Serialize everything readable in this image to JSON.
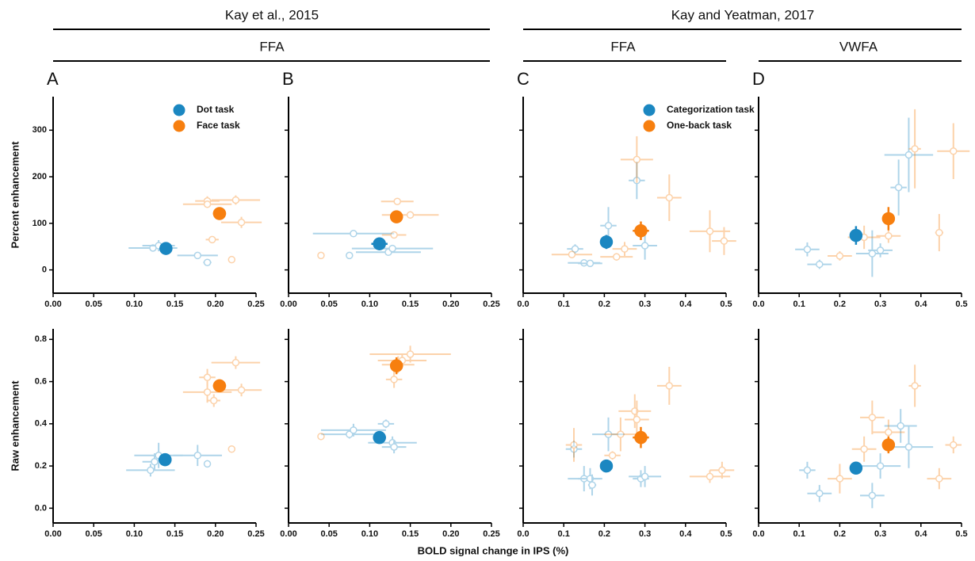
{
  "figure": {
    "groups": [
      {
        "title": "Kay et al., 2015",
        "regions": [
          "FFA"
        ]
      },
      {
        "title": "Kay and Yeatman, 2017",
        "regions": [
          "FFA",
          "VWFA"
        ]
      }
    ],
    "xlabel": "BOLD signal change in IPS (%)"
  },
  "chart_data": [
    {
      "type": "scatter",
      "panel": "A",
      "ylabel": "Percent enhancement",
      "legend": "upper right",
      "ytick_labels": true,
      "xlim": [
        0,
        0.25
      ],
      "xticks": [
        {
          "value": 0,
          "label": "0.00"
        },
        0.05,
        {
          "value": 0.1,
          "label": "0.10"
        },
        0.15,
        {
          "value": 0.2,
          "label": "0.20"
        },
        0.25
      ],
      "ylim": [
        -50,
        372
      ],
      "yticks": [
        0,
        100,
        200,
        300
      ],
      "series": [
        {
          "color": "#1b87c1",
          "filled": false,
          "x": [
            0.123,
            0.13,
            0.178,
            0.19
          ],
          "values": [
            47,
            52,
            31,
            16
          ],
          "xerr": [
            0.03,
            0.02,
            0.025,
            0.005
          ],
          "yerr": [
            5,
            12,
            4,
            3
          ]
        },
        {
          "color": "#f77f0f",
          "filled": false,
          "x": [
            0.19,
            0.19,
            0.225,
            0.232,
            0.196,
            0.22
          ],
          "values": [
            148,
            141,
            150,
            102,
            65,
            22
          ],
          "xerr": [
            0.015,
            0.03,
            0.03,
            0.025,
            0.008,
            0.004
          ],
          "yerr": [
            10,
            8,
            10,
            12,
            5,
            4
          ]
        },
        {
          "name": "Dot task",
          "color": "#1b87c1",
          "filled": true,
          "x": [
            0.139
          ],
          "values": [
            46
          ],
          "xerr": [
            0.008
          ],
          "yerr": [
            8
          ]
        },
        {
          "name": "Face task",
          "color": "#f77f0f",
          "filled": true,
          "x": [
            0.205
          ],
          "values": [
            121
          ],
          "xerr": [
            0.008
          ],
          "yerr": [
            10
          ]
        }
      ]
    },
    {
      "type": "scatter",
      "panel": "B",
      "ytick_labels": false,
      "xlim": [
        0,
        0.25
      ],
      "xticks": [
        {
          "value": 0,
          "label": "0.00"
        },
        0.05,
        {
          "value": 0.1,
          "label": "0.10"
        },
        0.15,
        {
          "value": 0.2,
          "label": "0.20"
        },
        0.25
      ],
      "ylim": [
        -50,
        372
      ],
      "yticks": [
        0,
        100,
        200,
        300
      ],
      "series": [
        {
          "color": "#1b87c1",
          "filled": false,
          "x": [
            0.075,
            0.08,
            0.123,
            0.128
          ],
          "values": [
            31,
            78,
            38,
            46
          ],
          "xerr": [
            0.003,
            0.05,
            0.04,
            0.05
          ],
          "yerr": [
            3,
            4,
            5,
            6
          ]
        },
        {
          "color": "#f77f0f",
          "filled": false,
          "x": [
            0.04,
            0.13,
            0.134,
            0.15
          ],
          "values": [
            31,
            75,
            147,
            118
          ],
          "xerr": [
            0.003,
            0.015,
            0.02,
            0.035
          ],
          "yerr": [
            3,
            6,
            6,
            8
          ]
        },
        {
          "color": "#1b87c1",
          "filled": true,
          "x": [
            0.112
          ],
          "values": [
            56
          ],
          "xerr": [
            0.01
          ],
          "yerr": [
            8
          ]
        },
        {
          "color": "#f77f0f",
          "filled": true,
          "x": [
            0.133
          ],
          "values": [
            114
          ],
          "xerr": [
            0.008
          ],
          "yerr": [
            10
          ]
        }
      ]
    },
    {
      "type": "scatter",
      "panel": "C",
      "legend": "upper right",
      "ytick_labels": false,
      "xlim": [
        0,
        0.5
      ],
      "xticks": [
        {
          "value": 0,
          "label": "0.0"
        },
        0.1,
        0.2,
        0.3,
        0.4,
        0.5
      ],
      "ylim": [
        -50,
        372
      ],
      "yticks": [
        0,
        100,
        200,
        300
      ],
      "series": [
        {
          "color": "#1b87c1",
          "filled": false,
          "x": [
            0.128,
            0.15,
            0.165,
            0.21,
            0.28,
            0.3
          ],
          "values": [
            45,
            15,
            14,
            95,
            192,
            52
          ],
          "xerr": [
            0.02,
            0.04,
            0.03,
            0.02,
            0.02,
            0.03
          ],
          "yerr": [
            10,
            6,
            6,
            40,
            40,
            30
          ]
        },
        {
          "color": "#f77f0f",
          "filled": false,
          "x": [
            0.12,
            0.23,
            0.25,
            0.28,
            0.36,
            0.46,
            0.495
          ],
          "values": [
            33,
            28,
            45,
            237,
            155,
            83,
            62
          ],
          "xerr": [
            0.05,
            0.04,
            0.03,
            0.04,
            0.03,
            0.05,
            0.03
          ],
          "yerr": [
            8,
            8,
            15,
            50,
            50,
            45,
            30
          ]
        },
        {
          "name": "Categorization task",
          "color": "#1b87c1",
          "filled": true,
          "x": [
            0.205
          ],
          "values": [
            60
          ],
          "xerr": [
            0.012
          ],
          "yerr": [
            15
          ]
        },
        {
          "name": "One-back task",
          "color": "#f77f0f",
          "filled": true,
          "x": [
            0.29
          ],
          "values": [
            84
          ],
          "xerr": [
            0.02
          ],
          "yerr": [
            20
          ]
        }
      ]
    },
    {
      "type": "scatter",
      "panel": "D",
      "ytick_labels": false,
      "xlim": [
        0,
        0.5
      ],
      "xticks": [
        {
          "value": 0,
          "label": "0.0"
        },
        0.1,
        0.2,
        0.3,
        0.4,
        0.5
      ],
      "ylim": [
        -50,
        372
      ],
      "yticks": [
        0,
        100,
        200,
        300
      ],
      "series": [
        {
          "color": "#1b87c1",
          "filled": false,
          "x": [
            0.12,
            0.15,
            0.28,
            0.3,
            0.345,
            0.37
          ],
          "values": [
            44,
            12,
            35,
            42,
            177,
            247
          ],
          "xerr": [
            0.03,
            0.03,
            0.04,
            0.03,
            0.02,
            0.06
          ],
          "yerr": [
            15,
            10,
            50,
            15,
            60,
            80
          ]
        },
        {
          "color": "#f77f0f",
          "filled": false,
          "x": [
            0.2,
            0.26,
            0.32,
            0.385,
            0.445,
            0.48
          ],
          "values": [
            30,
            70,
            73,
            260,
            80,
            255
          ],
          "xerr": [
            0.03,
            0.04,
            0.03,
            0.015,
            0.01,
            0.04
          ],
          "yerr": [
            10,
            25,
            15,
            85,
            40,
            60
          ]
        },
        {
          "color": "#1b87c1",
          "filled": true,
          "x": [
            0.24
          ],
          "values": [
            74
          ],
          "xerr": [
            0.015
          ],
          "yerr": [
            20
          ]
        },
        {
          "color": "#f77f0f",
          "filled": true,
          "x": [
            0.32
          ],
          "values": [
            110
          ],
          "xerr": [
            0.01
          ],
          "yerr": [
            25
          ]
        }
      ]
    },
    {
      "type": "scatter",
      "ylabel": "Raw enhancement",
      "ytick_labels": true,
      "xlim": [
        0,
        0.25
      ],
      "xticks": [
        {
          "value": 0,
          "label": "0.00"
        },
        0.05,
        {
          "value": 0.1,
          "label": "0.10"
        },
        0.15,
        {
          "value": 0.2,
          "label": "0.20"
        },
        0.25
      ],
      "ylim": [
        -0.07,
        0.85
      ],
      "yticks": [
        {
          "value": 0,
          "label": "0.0"
        },
        0.2,
        0.4,
        0.6,
        0.8
      ],
      "series": [
        {
          "color": "#1b87c1",
          "filled": false,
          "x": [
            0.12,
            0.125,
            0.13,
            0.178,
            0.19
          ],
          "values": [
            0.18,
            0.22,
            0.25,
            0.25,
            0.21
          ],
          "xerr": [
            0.03,
            0.015,
            0.03,
            0.03,
            0.004
          ],
          "yerr": [
            0.03,
            0.04,
            0.06,
            0.05,
            0.01
          ]
        },
        {
          "color": "#f77f0f",
          "filled": false,
          "x": [
            0.19,
            0.19,
            0.198,
            0.225,
            0.232,
            0.22
          ],
          "values": [
            0.62,
            0.55,
            0.51,
            0.69,
            0.56,
            0.28
          ],
          "xerr": [
            0.01,
            0.03,
            0.008,
            0.03,
            0.025,
            0.003
          ],
          "yerr": [
            0.04,
            0.05,
            0.03,
            0.03,
            0.03,
            0.01
          ]
        },
        {
          "color": "#1b87c1",
          "filled": true,
          "x": [
            0.138
          ],
          "values": [
            0.23
          ],
          "xerr": [
            0.008
          ],
          "yerr": [
            0.03
          ]
        },
        {
          "color": "#f77f0f",
          "filled": true,
          "x": [
            0.205
          ],
          "values": [
            0.58
          ],
          "xerr": [
            0.008
          ],
          "yerr": [
            0.03
          ]
        }
      ]
    },
    {
      "type": "scatter",
      "ytick_labels": false,
      "xlim": [
        0,
        0.25
      ],
      "xticks": [
        {
          "value": 0,
          "label": "0.00"
        },
        0.05,
        {
          "value": 0.1,
          "label": "0.10"
        },
        0.15,
        {
          "value": 0.2,
          "label": "0.20"
        },
        0.25
      ],
      "ylim": [
        -0.07,
        0.85
      ],
      "yticks": [
        {
          "value": 0,
          "label": "0.0"
        },
        0.2,
        0.4,
        0.6,
        0.8
      ],
      "series": [
        {
          "color": "#1b87c1",
          "filled": false,
          "x": [
            0.075,
            0.08,
            0.12,
            0.128,
            0.13
          ],
          "values": [
            0.35,
            0.37,
            0.4,
            0.31,
            0.29
          ],
          "xerr": [
            0.035,
            0.04,
            0.01,
            0.03,
            0.015
          ],
          "yerr": [
            0.02,
            0.03,
            0.02,
            0.03,
            0.03
          ]
        },
        {
          "color": "#f77f0f",
          "filled": false,
          "x": [
            0.04,
            0.13,
            0.14,
            0.15,
            0.135
          ],
          "values": [
            0.34,
            0.61,
            0.7,
            0.73,
            0.68
          ],
          "xerr": [
            0.003,
            0.01,
            0.03,
            0.05,
            0.02
          ],
          "yerr": [
            0.01,
            0.04,
            0.03,
            0.04,
            0.04
          ]
        },
        {
          "color": "#1b87c1",
          "filled": true,
          "x": [
            0.112
          ],
          "values": [
            0.335
          ],
          "xerr": [
            0.008
          ],
          "yerr": [
            0.03
          ]
        },
        {
          "color": "#f77f0f",
          "filled": true,
          "x": [
            0.133
          ],
          "values": [
            0.675
          ],
          "xerr": [
            0.008
          ],
          "yerr": [
            0.04
          ]
        }
      ]
    },
    {
      "type": "scatter",
      "ytick_labels": false,
      "xlim": [
        0,
        0.5
      ],
      "xticks": [
        {
          "value": 0,
          "label": "0.0"
        },
        0.1,
        0.2,
        0.3,
        0.4,
        0.5
      ],
      "ylim": [
        -0.07,
        0.85
      ],
      "yticks": [
        {
          "value": 0,
          "label": "0.0"
        },
        0.2,
        0.4,
        0.6,
        0.8
      ],
      "series": [
        {
          "color": "#1b87c1",
          "filled": false,
          "x": [
            0.125,
            0.15,
            0.165,
            0.17,
            0.21,
            0.29,
            0.3
          ],
          "values": [
            0.28,
            0.14,
            0.14,
            0.11,
            0.35,
            0.14,
            0.15
          ],
          "xerr": [
            0.02,
            0.04,
            0.03,
            0.01,
            0.04,
            0.02,
            0.04
          ],
          "yerr": [
            0.04,
            0.06,
            0.05,
            0.05,
            0.08,
            0.04,
            0.05
          ]
        },
        {
          "color": "#f77f0f",
          "filled": false,
          "x": [
            0.125,
            0.22,
            0.24,
            0.275,
            0.28,
            0.36,
            0.46,
            0.49
          ],
          "values": [
            0.3,
            0.25,
            0.35,
            0.46,
            0.42,
            0.58,
            0.15,
            0.18
          ],
          "xerr": [
            0.02,
            0.02,
            0.04,
            0.04,
            0.03,
            0.03,
            0.05,
            0.03
          ],
          "yerr": [
            0.08,
            0.02,
            0.08,
            0.08,
            0.09,
            0.09,
            0.03,
            0.04
          ]
        },
        {
          "color": "#1b87c1",
          "filled": true,
          "x": [
            0.205
          ],
          "values": [
            0.2
          ],
          "xerr": [
            0.012
          ],
          "yerr": [
            0.025
          ]
        },
        {
          "color": "#f77f0f",
          "filled": true,
          "x": [
            0.29
          ],
          "values": [
            0.335
          ],
          "xerr": [
            0.02
          ],
          "yerr": [
            0.05
          ]
        }
      ]
    },
    {
      "type": "scatter",
      "ytick_labels": false,
      "xlim": [
        0,
        0.5
      ],
      "xticks": [
        {
          "value": 0,
          "label": "0.0"
        },
        0.1,
        0.2,
        0.3,
        0.4,
        0.5
      ],
      "ylim": [
        -0.07,
        0.85
      ],
      "yticks": [
        {
          "value": 0,
          "label": "0.0"
        },
        0.2,
        0.4,
        0.6,
        0.8
      ],
      "series": [
        {
          "color": "#1b87c1",
          "filled": false,
          "x": [
            0.12,
            0.15,
            0.28,
            0.3,
            0.35,
            0.37
          ],
          "values": [
            0.18,
            0.07,
            0.06,
            0.2,
            0.39,
            0.29
          ],
          "xerr": [
            0.02,
            0.03,
            0.03,
            0.05,
            0.04,
            0.06
          ],
          "yerr": [
            0.04,
            0.04,
            0.06,
            0.06,
            0.08,
            0.1
          ]
        },
        {
          "color": "#f77f0f",
          "filled": false,
          "x": [
            0.2,
            0.26,
            0.28,
            0.32,
            0.385,
            0.445,
            0.48
          ],
          "values": [
            0.14,
            0.28,
            0.43,
            0.36,
            0.58,
            0.14,
            0.3
          ],
          "xerr": [
            0.03,
            0.03,
            0.03,
            0.04,
            0.015,
            0.03,
            0.02
          ],
          "yerr": [
            0.07,
            0.06,
            0.08,
            0.06,
            0.1,
            0.05,
            0.04
          ]
        },
        {
          "color": "#1b87c1",
          "filled": true,
          "x": [
            0.24
          ],
          "values": [
            0.19
          ],
          "xerr": [
            0.015
          ],
          "yerr": [
            0.025
          ]
        },
        {
          "color": "#f77f0f",
          "filled": true,
          "x": [
            0.32
          ],
          "values": [
            0.3
          ],
          "xerr": [
            0.012
          ],
          "yerr": [
            0.04
          ]
        }
      ]
    }
  ]
}
